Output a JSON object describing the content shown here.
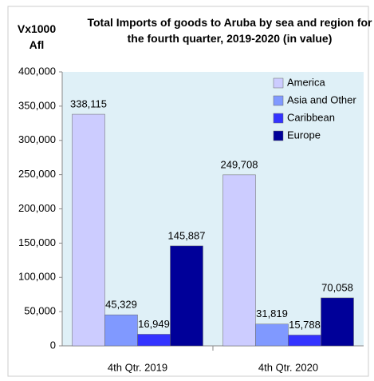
{
  "chart_data": {
    "type": "bar",
    "title": "Total Imports of goods to Aruba by sea and region for the fourth quarter, 2019-2020 (in value)",
    "y_label": "Vx1000 Afl",
    "categories": [
      "4th Qtr. 2019",
      "4th Qtr. 2020"
    ],
    "series": [
      {
        "name": "America",
        "color": "#ccccff",
        "values": [
          338115,
          249708
        ],
        "value_labels": [
          "338,115",
          "249,708"
        ]
      },
      {
        "name": "Asia and Other",
        "color": "#8099ff",
        "values": [
          45329,
          31819
        ],
        "value_labels": [
          "45,329",
          "31,819"
        ]
      },
      {
        "name": "Caribbean",
        "color": "#3333ff",
        "values": [
          16949,
          15788
        ],
        "value_labels": [
          "16,949",
          "15,788"
        ]
      },
      {
        "name": "Europe",
        "color": "#000099",
        "values": [
          145887,
          70058
        ],
        "value_labels": [
          "145,887",
          "70,058"
        ]
      }
    ],
    "ylim": [
      0,
      400000
    ],
    "yticks": [
      0,
      {
        "value": 50000,
        "label": "50,000"
      },
      {
        "value": 100000,
        "label": "100,000"
      },
      {
        "value": 150000,
        "label": "150,000"
      },
      {
        "value": 200000,
        "label": "200,000"
      },
      {
        "value": 250000,
        "label": "250,000"
      },
      {
        "value": 300000,
        "label": "300,000"
      },
      {
        "value": 350000,
        "label": "350,000"
      },
      {
        "value": 400000,
        "label": "400,000"
      }
    ],
    "legend": "upper right"
  }
}
